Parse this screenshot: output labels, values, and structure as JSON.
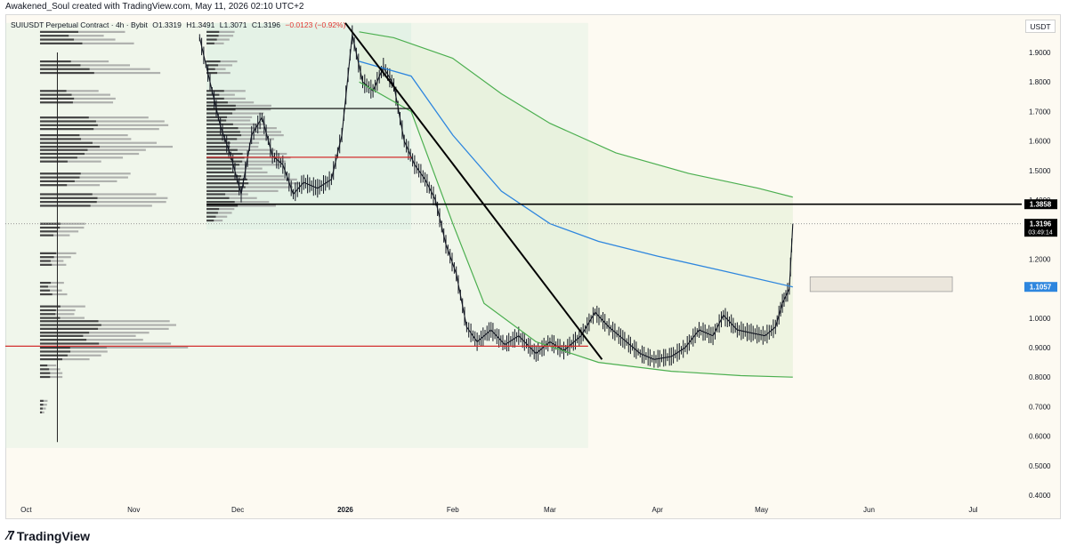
{
  "credit": "Awakened_Soul created with TradingView.com, May 11, 2026 02:10 UTC+2",
  "currency": "USDT",
  "brand": "TradingView",
  "symbol_bar": {
    "name": "SUIUSDT Perpetual Contract · 4h · Bybit",
    "open": "O1.3319",
    "high": "H1.3491",
    "low": "L1.3071",
    "close": "C1.3196",
    "change": "−0.0123 (−0.92%)"
  },
  "markers": {
    "resistance_label": "1.3858",
    "price_label": "1.3196",
    "countdown": "03:49:14",
    "ma_label": "1.1057"
  },
  "colors": {
    "background": "#fdfaf2",
    "candle": "#131722",
    "ma_line": "#2e86de",
    "envelope": "#4caf50",
    "hline_red": "#d32f2f",
    "hline_black": "#000000",
    "volume_profile": "#9a9a9a"
  },
  "chart_data": {
    "type": "candlestick",
    "timeframe": "4h",
    "y_axis": {
      "min": 0.4,
      "max": 2.0,
      "ticks": [
        "1.9000",
        "1.8000",
        "1.7000",
        "1.6000",
        "1.5000",
        "1.4000",
        "1.3000",
        "1.2000",
        "1.1000",
        "1.0000",
        "0.9000",
        "0.8000",
        "0.7000",
        "0.6000",
        "0.5000",
        "0.4000"
      ]
    },
    "x_axis": {
      "start": "2025-09-25",
      "end": "2026-07-15",
      "ticks": [
        {
          "label": "Oct",
          "date": "2025-10-01"
        },
        {
          "label": "Nov",
          "date": "2025-11-01"
        },
        {
          "label": "Dec",
          "date": "2025-12-01"
        },
        {
          "label": "2026",
          "date": "2026-01-01"
        },
        {
          "label": "Feb",
          "date": "2026-02-01"
        },
        {
          "label": "Mar",
          "date": "2026-03-01"
        },
        {
          "label": "Apr",
          "date": "2026-04-01"
        },
        {
          "label": "May",
          "date": "2026-05-01"
        },
        {
          "label": "Jun",
          "date": "2026-06-01"
        },
        {
          "label": "Jul",
          "date": "2026-07-01"
        }
      ]
    },
    "price_series": [
      {
        "date": "2025-11-20",
        "price": 1.95
      },
      {
        "date": "2025-11-23",
        "price": 1.8
      },
      {
        "date": "2025-11-26",
        "price": 1.65
      },
      {
        "date": "2025-11-29",
        "price": 1.55
      },
      {
        "date": "2025-12-02",
        "price": 1.42
      },
      {
        "date": "2025-12-05",
        "price": 1.62
      },
      {
        "date": "2025-12-08",
        "price": 1.68
      },
      {
        "date": "2025-12-11",
        "price": 1.55
      },
      {
        "date": "2025-12-14",
        "price": 1.52
      },
      {
        "date": "2025-12-17",
        "price": 1.42
      },
      {
        "date": "2025-12-20",
        "price": 1.46
      },
      {
        "date": "2025-12-24",
        "price": 1.44
      },
      {
        "date": "2025-12-28",
        "price": 1.47
      },
      {
        "date": "2025-12-31",
        "price": 1.62
      },
      {
        "date": "2026-01-03",
        "price": 1.96
      },
      {
        "date": "2026-01-06",
        "price": 1.8
      },
      {
        "date": "2026-01-09",
        "price": 1.77
      },
      {
        "date": "2026-01-12",
        "price": 1.85
      },
      {
        "date": "2026-01-15",
        "price": 1.79
      },
      {
        "date": "2026-01-18",
        "price": 1.6
      },
      {
        "date": "2026-01-21",
        "price": 1.52
      },
      {
        "date": "2026-01-24",
        "price": 1.47
      },
      {
        "date": "2026-01-27",
        "price": 1.4
      },
      {
        "date": "2026-01-30",
        "price": 1.25
      },
      {
        "date": "2026-02-02",
        "price": 1.15
      },
      {
        "date": "2026-02-05",
        "price": 0.97
      },
      {
        "date": "2026-02-08",
        "price": 0.92
      },
      {
        "date": "2026-02-12",
        "price": 0.96
      },
      {
        "date": "2026-02-16",
        "price": 0.91
      },
      {
        "date": "2026-02-20",
        "price": 0.94
      },
      {
        "date": "2026-02-25",
        "price": 0.88
      },
      {
        "date": "2026-03-01",
        "price": 0.92
      },
      {
        "date": "2026-03-05",
        "price": 0.89
      },
      {
        "date": "2026-03-10",
        "price": 0.94
      },
      {
        "date": "2026-03-14",
        "price": 1.02
      },
      {
        "date": "2026-03-18",
        "price": 0.97
      },
      {
        "date": "2026-03-22",
        "price": 0.93
      },
      {
        "date": "2026-03-27",
        "price": 0.88
      },
      {
        "date": "2026-03-31",
        "price": 0.86
      },
      {
        "date": "2026-04-05",
        "price": 0.87
      },
      {
        "date": "2026-04-09",
        "price": 0.9
      },
      {
        "date": "2026-04-13",
        "price": 0.96
      },
      {
        "date": "2026-04-17",
        "price": 0.94
      },
      {
        "date": "2026-04-20",
        "price": 1.01
      },
      {
        "date": "2026-04-24",
        "price": 0.96
      },
      {
        "date": "2026-04-28",
        "price": 0.95
      },
      {
        "date": "2026-05-02",
        "price": 0.94
      },
      {
        "date": "2026-05-05",
        "price": 0.97
      },
      {
        "date": "2026-05-07",
        "price": 1.05
      },
      {
        "date": "2026-05-09",
        "price": 1.1
      },
      {
        "date": "2026-05-10",
        "price": 1.3196
      }
    ],
    "ma_series": [
      {
        "date": "2026-01-05",
        "value": 1.87
      },
      {
        "date": "2026-01-20",
        "value": 1.82
      },
      {
        "date": "2026-02-01",
        "value": 1.62
      },
      {
        "date": "2026-02-15",
        "value": 1.43
      },
      {
        "date": "2026-03-01",
        "value": 1.32
      },
      {
        "date": "2026-03-15",
        "value": 1.26
      },
      {
        "date": "2026-04-01",
        "value": 1.21
      },
      {
        "date": "2026-04-20",
        "value": 1.16
      },
      {
        "date": "2026-05-10",
        "value": 1.1057
      }
    ],
    "envelope_upper": [
      {
        "date": "2026-01-05",
        "value": 1.97
      },
      {
        "date": "2026-01-15",
        "value": 1.95
      },
      {
        "date": "2026-02-01",
        "value": 1.88
      },
      {
        "date": "2026-02-15",
        "value": 1.76
      },
      {
        "date": "2026-03-01",
        "value": 1.66
      },
      {
        "date": "2026-03-20",
        "value": 1.56
      },
      {
        "date": "2026-04-10",
        "value": 1.49
      },
      {
        "date": "2026-04-30",
        "value": 1.44
      },
      {
        "date": "2026-05-10",
        "value": 1.41
      }
    ],
    "envelope_lower": [
      {
        "date": "2026-01-05",
        "value": 1.8
      },
      {
        "date": "2026-01-20",
        "value": 1.7
      },
      {
        "date": "2026-02-01",
        "value": 1.32
      },
      {
        "date": "2026-02-10",
        "value": 1.05
      },
      {
        "date": "2026-02-25",
        "value": 0.92
      },
      {
        "date": "2026-03-15",
        "value": 0.85
      },
      {
        "date": "2026-04-05",
        "value": 0.82
      },
      {
        "date": "2026-04-25",
        "value": 0.805
      },
      {
        "date": "2026-05-10",
        "value": 0.8
      }
    ],
    "horizontal_lines": [
      {
        "price": 1.71,
        "color": "black",
        "from": "2025-11-22",
        "to": "2026-01-20"
      },
      {
        "price": 1.545,
        "color": "red",
        "from": "2025-11-22",
        "to": "2026-01-20"
      },
      {
        "price": 1.3858,
        "color": "black",
        "from": "2025-11-22",
        "to": "2026-07-15"
      },
      {
        "price": 0.905,
        "color": "red",
        "from": "2025-09-25",
        "to": "2026-03-12"
      }
    ],
    "trendline": {
      "from": {
        "date": "2026-01-01",
        "price": 2.0
      },
      "to": {
        "date": "2026-03-16",
        "price": 0.86
      }
    },
    "vertical_line": {
      "date": "2025-10-10"
    },
    "zone_box": {
      "from": "2026-05-15",
      "to": "2026-06-25",
      "price_top": 1.14,
      "price_bottom": 1.09
    },
    "shaded_regions": [
      {
        "from": "2025-11-22",
        "to": "2026-01-20",
        "price_top": 2.0,
        "price_bottom": 1.3
      },
      {
        "from": "2025-09-25",
        "to": "2026-03-12",
        "price_top": 2.0,
        "price_bottom": 0.56
      }
    ],
    "volume_profiles": [
      {
        "anchor": "2025-10-05",
        "bins": [
          {
            "price": 1.95,
            "size": 0.7
          },
          {
            "price": 1.85,
            "size": 0.8
          },
          {
            "price": 1.75,
            "size": 0.5
          },
          {
            "price": 1.66,
            "size": 0.85
          },
          {
            "price": 1.6,
            "size": 0.9
          },
          {
            "price": 1.55,
            "size": 0.7
          },
          {
            "price": 1.47,
            "size": 0.6
          },
          {
            "price": 1.4,
            "size": 0.85
          },
          {
            "price": 1.3,
            "size": 0.3
          },
          {
            "price": 1.2,
            "size": 0.25
          },
          {
            "price": 1.1,
            "size": 0.2
          },
          {
            "price": 1.02,
            "size": 0.35
          },
          {
            "price": 0.97,
            "size": 0.9
          },
          {
            "price": 0.92,
            "size": 1.0
          },
          {
            "price": 0.88,
            "size": 0.45
          },
          {
            "price": 0.82,
            "size": 0.15
          },
          {
            "price": 0.7,
            "size": 0.05
          }
        ]
      },
      {
        "anchor": "2025-11-22",
        "bins": [
          {
            "price": 1.95,
            "size": 0.3
          },
          {
            "price": 1.85,
            "size": 0.35
          },
          {
            "price": 1.75,
            "size": 0.55
          },
          {
            "price": 1.7,
            "size": 0.7
          },
          {
            "price": 1.65,
            "size": 0.8
          },
          {
            "price": 1.6,
            "size": 0.85
          },
          {
            "price": 1.55,
            "size": 0.9
          },
          {
            "price": 1.5,
            "size": 0.95
          },
          {
            "price": 1.45,
            "size": 1.0
          },
          {
            "price": 1.4,
            "size": 0.75
          },
          {
            "price": 1.35,
            "size": 0.3
          }
        ]
      }
    ]
  }
}
